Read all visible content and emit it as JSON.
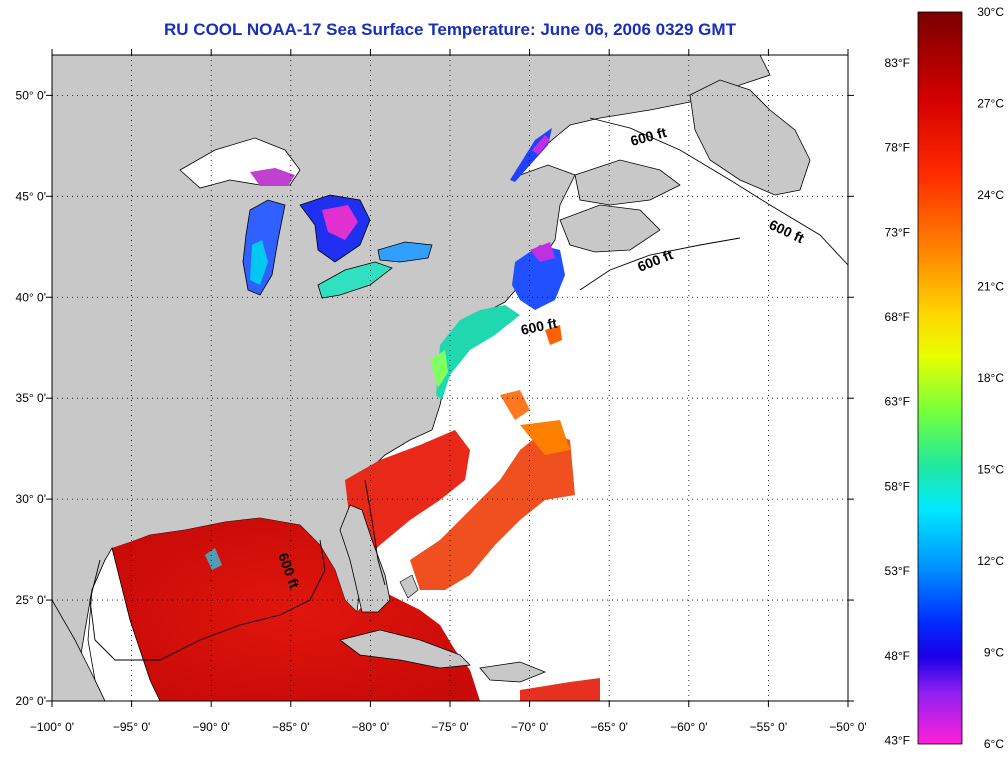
{
  "title": "RU COOL  NOAA-17  Sea Surface Temperature:  June 06, 2006 0329 GMT",
  "map": {
    "lon_range": [
      -100,
      -50
    ],
    "lat_range": [
      20,
      52
    ],
    "lon_ticks": [
      {
        "value": -100,
        "label": "−100° 0'"
      },
      {
        "value": -95,
        "label": "−95° 0'"
      },
      {
        "value": -90,
        "label": "−90° 0'"
      },
      {
        "value": -85,
        "label": "−85° 0'"
      },
      {
        "value": -80,
        "label": "−80° 0'"
      },
      {
        "value": -75,
        "label": "−75° 0'"
      },
      {
        "value": -70,
        "label": "−70° 0'"
      },
      {
        "value": -65,
        "label": "−65° 0'"
      },
      {
        "value": -60,
        "label": "−60° 0'"
      },
      {
        "value": -55,
        "label": "−55° 0'"
      },
      {
        "value": -50,
        "label": "−50° 0'"
      }
    ],
    "lat_ticks": [
      {
        "value": 20,
        "label": "20° 0'"
      },
      {
        "value": 25,
        "label": "25° 0'"
      },
      {
        "value": 30,
        "label": "30° 0'"
      },
      {
        "value": 35,
        "label": "35° 0'"
      },
      {
        "value": 40,
        "label": "40° 0'"
      },
      {
        "value": 45,
        "label": "45° 0'"
      },
      {
        "value": 50,
        "label": "50° 0'"
      }
    ],
    "grid": "dotted",
    "land_color": "#c8c8c8",
    "no_data_color": "#ffffff",
    "depth_contour_label": "600 ft"
  },
  "colorbar": {
    "range_c": [
      6,
      30
    ],
    "celsius_labels": [
      "30°C",
      "27°C",
      "24°C",
      "21°C",
      "18°C",
      "15°C",
      "12°C",
      "9°C",
      "6°C"
    ],
    "fahrenheit_labels": [
      "83°F",
      "78°F",
      "73°F",
      "68°F",
      "63°F",
      "58°F",
      "53°F",
      "48°F",
      "43°F"
    ],
    "colors": [
      "#8b0000",
      "#e00000",
      "#ff4000",
      "#ff8c00",
      "#ffd000",
      "#e8ff00",
      "#80ff40",
      "#20e0a0",
      "#00e0ff",
      "#0090ff",
      "#0030ff",
      "#2000e0",
      "#a020f0",
      "#ff20e0"
    ]
  }
}
